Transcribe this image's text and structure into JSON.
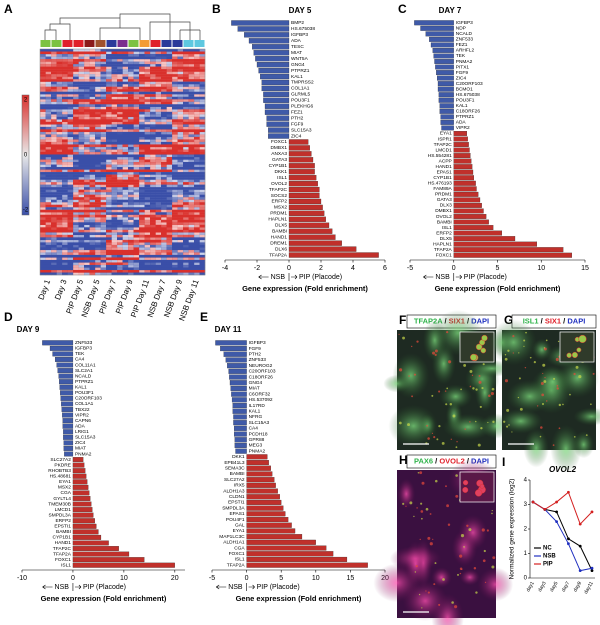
{
  "chart_data": [
    {
      "type": "heatmap",
      "panel": "A",
      "columns": [
        "Day 1",
        "Day 3",
        "PIP Day 5",
        "NSB Day 5",
        "PIP Day 7",
        "PIP Day 9",
        "PIP Day 11",
        "NSB Day 7",
        "NSB Day 9",
        "NSB Day 11"
      ],
      "column_colors": [
        "#000000",
        "#000000",
        "#d42020",
        "#2030c0",
        "#d42020",
        "#d42020",
        "#d42020",
        "#2030c0",
        "#2030c0",
        "#2030c0"
      ],
      "sample_colors": [
        "#7cc242",
        "#7cc242",
        "#e0202a",
        "#e0202a",
        "#8b1a1a",
        "#a0522d",
        "#2b3a9a",
        "#7b2f8e",
        "#7cc242",
        "#f39c34",
        "#e0202a",
        "#2b3a9a",
        "#2b3a9a",
        "#5ec8e0",
        "#5ec8e0"
      ],
      "colorbar_ticks": [
        2,
        0,
        -2
      ]
    },
    {
      "type": "hbar",
      "panel": "B",
      "title": "DAY 5",
      "categories": [
        "BMP2",
        "HS.675038",
        "IGFBP3",
        "ADA",
        "TESC",
        "MIAT",
        "WNT5A",
        "GNG4",
        "PTPRZ1",
        "KAL1",
        "TMPRSS2",
        "COL1A1",
        "GLRML5",
        "POU3F1",
        "PLEKHG6",
        "FEZ1",
        "PTH2",
        "FGF9",
        "SLC15A3",
        "ZIC4",
        "FOXC1",
        "DMBX1",
        "ANXA3",
        "GATA3",
        "CYP1B1",
        "DKK1",
        "ISL1",
        "OVOL2",
        "TFAP2C",
        "SOCS2",
        "ERFP2",
        "MSX2",
        "PRDM1",
        "HAPLN1",
        "DLX5",
        "BAMBI",
        "HAND1",
        "DREM1",
        "DLX6",
        "TFAP2A"
      ],
      "values": [
        -3.6,
        -3.2,
        -2.8,
        -2.5,
        -2.3,
        -2.2,
        -2.1,
        -2.0,
        -1.9,
        -1.8,
        -1.7,
        -1.7,
        -1.6,
        -1.6,
        -1.5,
        -1.5,
        -1.4,
        -1.4,
        -1.3,
        -1.3,
        1.2,
        1.3,
        1.4,
        1.5,
        1.6,
        1.6,
        1.7,
        1.8,
        1.9,
        1.9,
        2.0,
        2.1,
        2.2,
        2.3,
        2.5,
        2.7,
        2.9,
        3.3,
        4.2,
        5.6
      ],
      "xlim": [
        -4,
        6
      ],
      "xticks": [
        -4,
        -2,
        0,
        2,
        4,
        6
      ],
      "negative_color": "#3f5aa8",
      "positive_color": "#c0302b",
      "left_label": "NSB",
      "right_label": "PIP (Placode)",
      "xlabel": "Gene expression (Fold enrichment)"
    },
    {
      "type": "hbar",
      "panel": "C",
      "title": "DAY 7",
      "categories": [
        "IGFBP3",
        "NDP",
        "NCALD",
        "ZNF533",
        "FEZ1",
        "ARHFL2",
        "TEK",
        "PNMA2",
        "PITX1",
        "FGF9",
        "ZIC4",
        "C20ORF103",
        "BCMO1",
        "HS.675038",
        "POU3F1",
        "KAL1",
        "C18ORF26",
        "PTPRZ1",
        "ADA",
        "VIPR2",
        "EYA1",
        "ISPR1",
        "TFAP2C",
        "LMCD1",
        "HS.554281",
        "ACPP",
        "HAND1",
        "EPAS1",
        "CYP1B1",
        "HS.476193",
        "FAM89A",
        "PRDM1",
        "GATA3",
        "DLX3",
        "DMBX1",
        "OVOL2",
        "BAMBI",
        "ISL1",
        "ERFP2",
        "DLX5",
        "HAPLN1",
        "TFAP2A",
        "FOXC1"
      ],
      "values": [
        -4.5,
        -3.8,
        -3.2,
        -2.8,
        -2.6,
        -2.4,
        -2.3,
        -2.2,
        -2.1,
        -2.0,
        -1.9,
        -1.8,
        -1.8,
        -1.7,
        -1.7,
        -1.6,
        -1.6,
        -1.5,
        -1.5,
        -1.4,
        1.5,
        1.6,
        1.7,
        1.8,
        1.9,
        2.0,
        2.1,
        2.2,
        2.3,
        2.5,
        2.6,
        2.8,
        3.0,
        3.2,
        3.4,
        3.7,
        4.0,
        4.5,
        5.5,
        7.0,
        9.5,
        12.5,
        13.5
      ],
      "xlim": [
        -5,
        15
      ],
      "xticks": [
        -5,
        0,
        5,
        10,
        15
      ],
      "negative_color": "#3f5aa8",
      "positive_color": "#c0302b",
      "left_label": "NSB",
      "right_label": "PIP (Placode)",
      "xlabel": "Gene expression (Fold enrichment)"
    },
    {
      "type": "hbar",
      "panel": "D",
      "title": "DAY 9",
      "categories": [
        "ZNF533",
        "IGFBP3",
        "TEK",
        "CA4",
        "COL11A1",
        "SLC2A1",
        "NCALD",
        "PTPRZ1",
        "KAL1",
        "POU3F1",
        "C20ORF103",
        "COL1A1",
        "TBX22",
        "VIPR2",
        "CAPN6",
        "ADA",
        "LRIG1",
        "SLC15A3",
        "ZIC4",
        "MIAT",
        "PNMA2",
        "SLC27A2",
        "PKDRE",
        "RHOBTB3",
        "HS.48681",
        "EYA1",
        "MSX2",
        "CGA",
        "GYLTL4",
        "TMEM30B",
        "LMCD1",
        "SMPDL3A",
        "ERFP2",
        "EPSTI1",
        "BAMBI",
        "CYP1B1",
        "HAND1",
        "TFAP2C",
        "TFAP2A",
        "FOXC1",
        "ISL1"
      ],
      "values": [
        -6,
        -4.5,
        -4,
        -3.5,
        -3.2,
        -3,
        -2.8,
        -2.7,
        -2.6,
        -2.5,
        -2.4,
        -2.3,
        -2.2,
        -2.1,
        -2.0,
        -2.0,
        -1.9,
        -1.9,
        -1.8,
        -1.8,
        -1.7,
        2.0,
        2.2,
        2.4,
        2.6,
        2.8,
        3.0,
        3.2,
        3.4,
        3.6,
        3.8,
        4.0,
        4.3,
        4.6,
        5.0,
        5.5,
        7,
        9,
        11,
        14,
        20
      ],
      "xlim": [
        -10,
        22
      ],
      "xticks": [
        -10,
        0,
        10,
        20
      ],
      "negative_color": "#3f5aa8",
      "positive_color": "#c0302b",
      "left_label": "NSB",
      "right_label": "PIP (Placode)",
      "xlabel": "Gene expression (Fold enrichment)"
    },
    {
      "type": "hbar",
      "panel": "E",
      "title": "DAY 11",
      "categories": [
        "IGFBP3",
        "FGF9",
        "PTH2",
        "ZNF533",
        "NEUROG2",
        "C20ORF103",
        "C18ORF26",
        "GNG4",
        "MIAT",
        "C6ORF32",
        "HS.537092",
        "IL17RD",
        "KAL1",
        "NFRG",
        "SLC15A3",
        "CA4",
        "PCDH18",
        "GPR88",
        "MEG3",
        "PNMA2",
        "DKK1",
        "EPB41L3",
        "SEMA3C",
        "BAMBI",
        "SLC27A2",
        "IRX5",
        "ALDH1A3",
        "CLDN1",
        "EPSTI1",
        "SMPDL3A",
        "EPAS1",
        "POU4F1",
        "GAL",
        "EYA1",
        "MAP1LC3C",
        "ALDH1A1",
        "CGA",
        "FOXC1",
        "ISL1",
        "TFAP2A"
      ],
      "values": [
        -4.5,
        -3.8,
        -3.3,
        -3,
        -2.8,
        -2.6,
        -2.5,
        -2.4,
        -2.3,
        -2.2,
        -2.1,
        -2.0,
        -2.0,
        -1.9,
        -1.9,
        -1.8,
        -1.8,
        -1.7,
        -1.7,
        -1.6,
        3.0,
        3.2,
        3.5,
        3.7,
        4.0,
        4.2,
        4.5,
        4.8,
        5.0,
        5.3,
        5.6,
        6.0,
        6.5,
        7.0,
        8.0,
        10,
        11.5,
        12.5,
        14.5,
        17.5
      ],
      "xlim": [
        -5,
        20
      ],
      "xticks": [
        -5,
        0,
        5,
        10,
        15,
        20
      ],
      "negative_color": "#3f5aa8",
      "positive_color": "#c0302b",
      "left_label": "NSB",
      "right_label": "PIP (Placode)",
      "xlabel": "Gene expression (Fold enrichment)"
    },
    {
      "type": "line",
      "panel": "I",
      "title": "OVOL2",
      "categories": [
        "day1",
        "day3",
        "day5",
        "day7",
        "day9",
        "day11"
      ],
      "series": [
        {
          "name": "NC",
          "color": "#000000",
          "values": [
            3.1,
            2.8,
            2.7,
            1.6,
            1.3,
            0.3
          ]
        },
        {
          "name": "NSB",
          "color": "#2030c0",
          "values": [
            3.1,
            2.8,
            2.3,
            1.4,
            0.3,
            0.4
          ]
        },
        {
          "name": "PIP",
          "color": "#d42020",
          "values": [
            3.1,
            2.8,
            3.1,
            3.5,
            2.2,
            2.7
          ]
        }
      ],
      "ylabel": "Normalized gene expression (log2)",
      "ylim": [
        0,
        4
      ],
      "yticks": [
        0,
        1,
        2,
        3,
        4
      ],
      "legend": "lower left"
    }
  ],
  "images": [
    {
      "panel": "F",
      "labels": [
        "TFAP2A",
        "SIX1",
        "DAPI"
      ],
      "label_colors": [
        "#2fb34a",
        "#e0202a",
        "#2030c0"
      ],
      "separator": " / "
    },
    {
      "panel": "G",
      "labels": [
        "ISL1",
        "SIX1",
        "DAPI"
      ],
      "label_colors": [
        "#2fb34a",
        "#e0202a",
        "#2030c0"
      ],
      "separator": " / "
    },
    {
      "panel": "H",
      "labels": [
        "PAX6",
        "OVOL2",
        "DAPI"
      ],
      "label_colors": [
        "#2fb34a",
        "#e0202a",
        "#2030c0"
      ],
      "separator": " / "
    }
  ]
}
